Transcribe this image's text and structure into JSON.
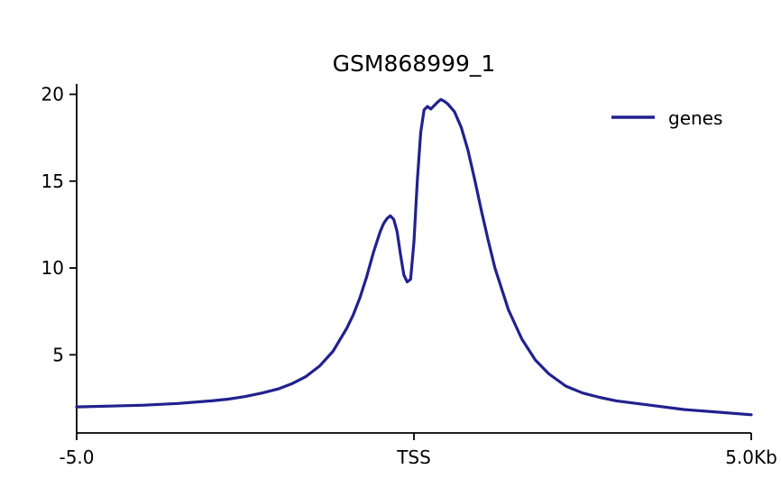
{
  "chart_data": {
    "type": "line",
    "title": "GSM868999_1",
    "xlabel": "",
    "ylabel": "",
    "xlim": [
      -5.0,
      5.0
    ],
    "ylim": [
      0.5,
      20.6
    ],
    "grid": false,
    "legend_position": "upper right",
    "x_ticks": [
      {
        "value": -5.0,
        "label": "-5.0"
      },
      {
        "value": 0.0,
        "label": "TSS"
      },
      {
        "value": 5.0,
        "label": "5.0Kb"
      }
    ],
    "y_ticks": [
      {
        "value": 5,
        "label": "5"
      },
      {
        "value": 10,
        "label": "10"
      },
      {
        "value": 15,
        "label": "15"
      },
      {
        "value": 20,
        "label": "20"
      }
    ],
    "series": [
      {
        "name": "genes",
        "color": "#21218f",
        "x": [
          -5.0,
          -4.5,
          -4.0,
          -3.5,
          -3.0,
          -2.75,
          -2.5,
          -2.25,
          -2.0,
          -1.8,
          -1.6,
          -1.4,
          -1.2,
          -1.0,
          -0.9,
          -0.8,
          -0.7,
          -0.6,
          -0.5,
          -0.45,
          -0.4,
          -0.35,
          -0.3,
          -0.25,
          -0.2,
          -0.15,
          -0.1,
          -0.05,
          0.0,
          0.05,
          0.1,
          0.15,
          0.2,
          0.25,
          0.3,
          0.35,
          0.4,
          0.45,
          0.5,
          0.6,
          0.7,
          0.8,
          0.9,
          1.0,
          1.1,
          1.2,
          1.4,
          1.6,
          1.8,
          2.0,
          2.25,
          2.5,
          2.75,
          3.0,
          3.5,
          4.0,
          4.5,
          5.0
        ],
        "y": [
          2.0,
          2.05,
          2.1,
          2.2,
          2.35,
          2.45,
          2.6,
          2.8,
          3.05,
          3.35,
          3.75,
          4.35,
          5.2,
          6.5,
          7.3,
          8.3,
          9.5,
          10.9,
          12.1,
          12.55,
          12.85,
          13.0,
          12.8,
          12.1,
          10.8,
          9.6,
          9.2,
          9.35,
          11.5,
          15.0,
          17.8,
          19.1,
          19.3,
          19.15,
          19.35,
          19.55,
          19.7,
          19.6,
          19.45,
          19.0,
          18.1,
          16.8,
          15.1,
          13.3,
          11.6,
          10.0,
          7.6,
          5.9,
          4.7,
          3.9,
          3.2,
          2.8,
          2.55,
          2.35,
          2.1,
          1.85,
          1.7,
          1.55
        ]
      }
    ]
  },
  "colors": {
    "axis": "#000000",
    "background": "#ffffff"
  }
}
